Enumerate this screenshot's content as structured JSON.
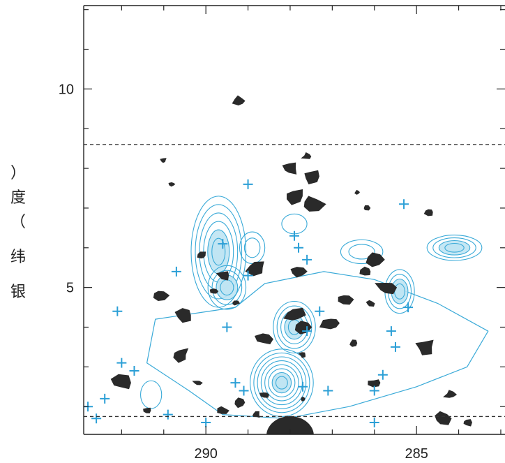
{
  "chart_data": {
    "type": "scatter",
    "title": "",
    "xlabel": "",
    "ylabel": "银纬（度）",
    "ylabel_chars": [
      "银",
      "纬",
      "（",
      "度",
      "）"
    ],
    "x_reversed": true,
    "xlim": [
      292.9,
      282.9
    ],
    "ylim": [
      1.3,
      12.1
    ],
    "x_ticks": [
      290,
      285
    ],
    "x_tick_labels": [
      "290",
      "285"
    ],
    "y_ticks": [
      5,
      10
    ],
    "y_tick_labels": [
      "5",
      "10"
    ],
    "dashed_lines_b": [
      8.6,
      1.75
    ],
    "colors": {
      "cloud": "#2a2a2a",
      "contour": "#3aaad8",
      "contour_fill": "#bfe4f3",
      "marker": "#2b9fd6",
      "axis": "#222222",
      "dashed": "#333333"
    },
    "series": [
      {
        "kind": "markers",
        "marker": "plus",
        "points": [
          [
            289.0,
            7.6
          ],
          [
            287.9,
            6.3
          ],
          [
            287.8,
            6.0
          ],
          [
            287.6,
            5.7
          ],
          [
            285.3,
            7.1
          ],
          [
            289.6,
            6.1
          ],
          [
            289.0,
            5.3
          ],
          [
            290.7,
            5.4
          ],
          [
            292.1,
            4.4
          ],
          [
            289.5,
            4.0
          ],
          [
            287.3,
            4.4
          ],
          [
            287.6,
            3.9
          ],
          [
            285.6,
            3.9
          ],
          [
            285.5,
            3.5
          ],
          [
            285.2,
            4.5
          ],
          [
            292.0,
            3.1
          ],
          [
            291.7,
            2.9
          ],
          [
            292.4,
            2.2
          ],
          [
            292.8,
            2.0
          ],
          [
            289.3,
            2.6
          ],
          [
            289.1,
            2.4
          ],
          [
            287.7,
            2.5
          ],
          [
            287.1,
            2.4
          ],
          [
            286.0,
            2.4
          ],
          [
            285.8,
            2.8
          ],
          [
            290.9,
            1.8
          ],
          [
            290.0,
            1.6
          ],
          [
            292.6,
            1.7
          ],
          [
            286.0,
            1.6
          ]
        ]
      },
      {
        "kind": "clouds",
        "points": [
          [
            289.2,
            9.7
          ],
          [
            287.6,
            8.3
          ],
          [
            288.0,
            8.0
          ],
          [
            287.5,
            7.8
          ],
          [
            287.9,
            7.3
          ],
          [
            287.5,
            7.1
          ],
          [
            286.4,
            7.4
          ],
          [
            286.2,
            7.0
          ],
          [
            284.7,
            6.9
          ],
          [
            290.8,
            7.6
          ],
          [
            291.0,
            8.2
          ],
          [
            287.8,
            5.4
          ],
          [
            286.2,
            5.4
          ],
          [
            285.7,
            5.0
          ],
          [
            286.1,
            4.6
          ],
          [
            289.8,
            4.9
          ],
          [
            289.3,
            4.6
          ],
          [
            287.9,
            4.3
          ],
          [
            287.7,
            4.0
          ],
          [
            288.6,
            3.7
          ],
          [
            287.0,
            4.1
          ],
          [
            286.5,
            3.6
          ],
          [
            287.7,
            3.3
          ],
          [
            288.6,
            2.3
          ],
          [
            287.7,
            2.2
          ],
          [
            289.2,
            2.1
          ],
          [
            289.6,
            1.9
          ],
          [
            288.8,
            1.8
          ],
          [
            288.1,
            1.4
          ],
          [
            287.8,
            1.4
          ],
          [
            290.2,
            2.6
          ],
          [
            290.6,
            3.3
          ],
          [
            292.0,
            2.6
          ],
          [
            291.4,
            1.9
          ],
          [
            290.5,
            4.3
          ],
          [
            291.1,
            4.8
          ],
          [
            290.1,
            5.8
          ],
          [
            289.6,
            5.3
          ],
          [
            286.0,
            2.6
          ],
          [
            284.8,
            3.5
          ],
          [
            284.2,
            2.3
          ],
          [
            284.4,
            1.7
          ],
          [
            283.8,
            1.6
          ],
          [
            288.8,
            5.5
          ],
          [
            286.7,
            4.7
          ],
          [
            286.0,
            5.7
          ]
        ]
      },
      {
        "kind": "contours",
        "peaks": [
          {
            "l": 289.7,
            "b": 5.9,
            "rx": 0.65,
            "ry": 1.4,
            "levels": 6
          },
          {
            "l": 289.5,
            "b": 5.0,
            "rx": 0.45,
            "ry": 0.55,
            "levels": 4
          },
          {
            "l": 287.9,
            "b": 4.0,
            "rx": 0.5,
            "ry": 0.65,
            "levels": 5
          },
          {
            "l": 288.2,
            "b": 2.6,
            "rx": 0.75,
            "ry": 0.85,
            "levels": 8
          },
          {
            "l": 285.4,
            "b": 4.9,
            "rx": 0.35,
            "ry": 0.55,
            "levels": 4
          },
          {
            "l": 284.1,
            "b": 6.0,
            "rx": 0.65,
            "ry": 0.32,
            "levels": 4
          },
          {
            "l": 286.3,
            "b": 5.9,
            "rx": 0.5,
            "ry": 0.3,
            "levels": 2
          },
          {
            "l": 288.9,
            "b": 6.0,
            "rx": 0.3,
            "ry": 0.4,
            "levels": 2
          },
          {
            "l": 287.9,
            "b": 6.6,
            "rx": 0.3,
            "ry": 0.25,
            "levels": 1
          },
          {
            "l": 291.3,
            "b": 2.3,
            "rx": 0.25,
            "ry": 0.35,
            "levels": 1
          }
        ]
      }
    ]
  }
}
